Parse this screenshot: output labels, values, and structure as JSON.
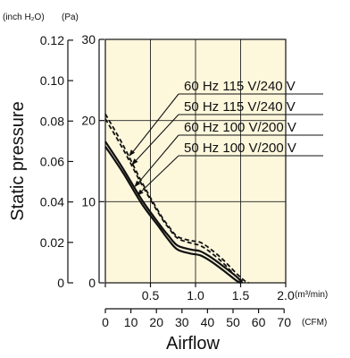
{
  "chart_data": {
    "type": "line",
    "title": "",
    "ylabel": "Static pressure",
    "xlabel": "Airflow",
    "x_unit": "(m³/min)",
    "x2_unit": "(CFM)",
    "y_unit": "(Pa)",
    "y2_unit": "(inch H₂O)",
    "xlim": [
      0,
      2.0
    ],
    "ylim": [
      0,
      30
    ],
    "x_ticks": [
      0,
      0.5,
      1.0,
      1.5,
      2.0
    ],
    "x_tick_labels": [
      "",
      "0.5",
      "1.0",
      "1.5",
      "2.0"
    ],
    "y_ticks": [
      0,
      10,
      20,
      30
    ],
    "y_tick_labels": [
      "0",
      "10",
      "20",
      "30"
    ],
    "y2_ticks": [
      0,
      0.02,
      0.04,
      0.06,
      0.08,
      0.1,
      0.12
    ],
    "y2_tick_labels": [
      "0",
      "0.02",
      "0.04",
      "0.06",
      "0.08",
      "0.10",
      "0.12"
    ],
    "x2_ticks": [
      0,
      10,
      20,
      30,
      40,
      50,
      60,
      70
    ],
    "x2_tick_labels": [
      "0",
      "10",
      "20",
      "30",
      "40",
      "50",
      "60",
      "70"
    ],
    "x2_max": 70.63,
    "y2_max": 0.1204,
    "grid": true,
    "background": "#fdf7dc",
    "series": [
      {
        "name": "60 Hz 115 V/240 V",
        "style": "dashed",
        "x": [
          0,
          0.2,
          0.4,
          0.6,
          0.7,
          0.8,
          0.95,
          1.05,
          1.15,
          1.3,
          1.45,
          1.55,
          1.59
        ],
        "y": [
          20.8,
          16.9,
          12.5,
          8.6,
          7.0,
          5.7,
          5.2,
          5.0,
          4.3,
          2.9,
          1.2,
          0.2,
          0
        ]
      },
      {
        "name": "50 Hz 115 V/240 V",
        "style": "dashed",
        "x": [
          0,
          0.2,
          0.4,
          0.6,
          0.7,
          0.8,
          0.95,
          1.05,
          1.15,
          1.3,
          1.45,
          1.55
        ],
        "y": [
          20.2,
          16.4,
          12.2,
          8.4,
          6.8,
          5.5,
          4.9,
          4.6,
          3.9,
          2.5,
          0.8,
          0
        ]
      },
      {
        "name": "60 Hz 100 V/200 V",
        "style": "solid",
        "x": [
          0,
          0.2,
          0.4,
          0.6,
          0.7,
          0.8,
          0.95,
          1.05,
          1.15,
          1.3,
          1.45,
          1.52
        ],
        "y": [
          17.4,
          14.0,
          10.3,
          7.2,
          5.8,
          4.6,
          4.1,
          3.9,
          3.3,
          2.1,
          0.8,
          0
        ]
      },
      {
        "name": "50 Hz 100 V/200 V",
        "style": "solid",
        "x": [
          0,
          0.2,
          0.4,
          0.6,
          0.7,
          0.8,
          0.95,
          1.05,
          1.15,
          1.3,
          1.45,
          1.5
        ],
        "y": [
          16.8,
          13.5,
          9.8,
          6.8,
          5.3,
          4.1,
          3.6,
          3.4,
          2.8,
          1.6,
          0.3,
          0
        ]
      }
    ],
    "legend": {
      "placement": "right",
      "style": "leader-arrows"
    }
  }
}
